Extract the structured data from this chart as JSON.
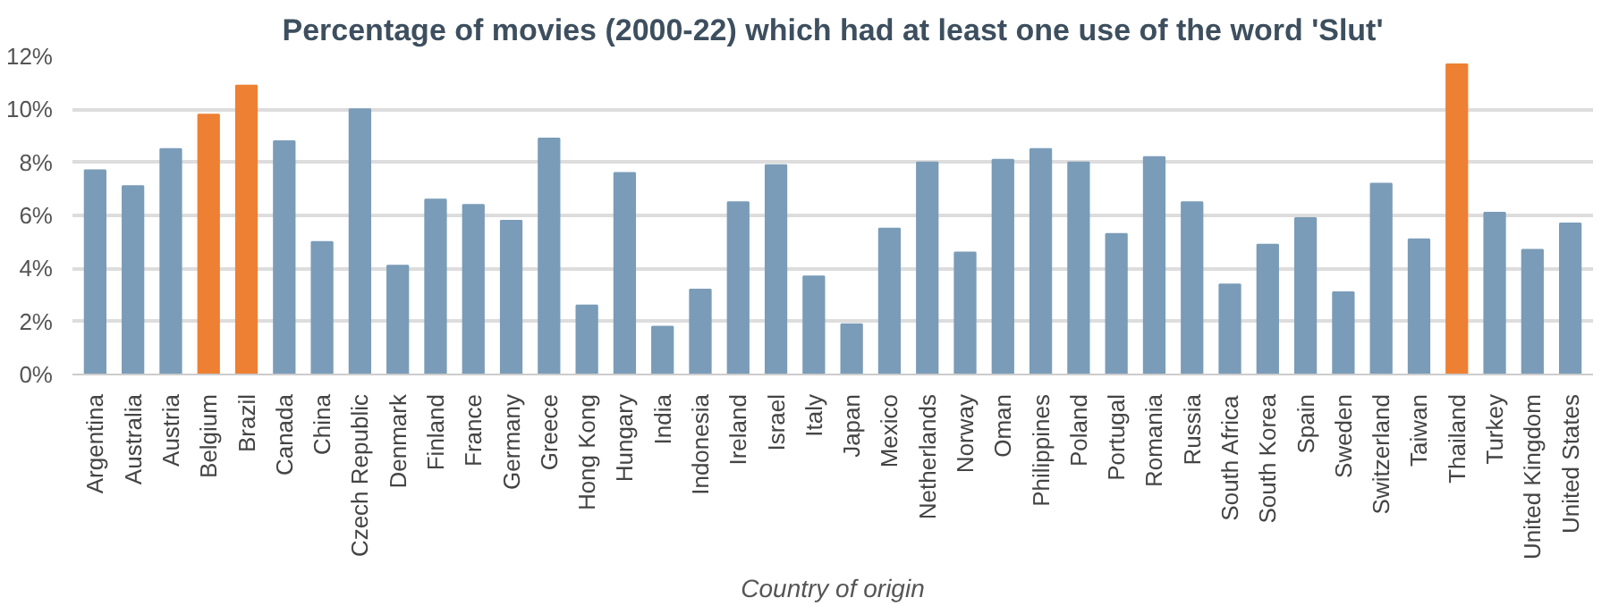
{
  "chart_data": {
    "type": "bar",
    "title": "Percentage of movies (2000-22) which had at least one use of the word 'Slut'",
    "xlabel": "Country of origin",
    "categories": [
      "Argentina",
      "Australia",
      "Austria",
      "Belgium",
      "Brazil",
      "Canada",
      "China",
      "Czech Republic",
      "Denmark",
      "Finland",
      "France",
      "Germany",
      "Greece",
      "Hong Kong",
      "Hungary",
      "India",
      "Indonesia",
      "Ireland",
      "Israel",
      "Italy",
      "Japan",
      "Mexico",
      "Netherlands",
      "Norway",
      "Oman",
      "Philippines",
      "Poland",
      "Portugal",
      "Romania",
      "Russia",
      "South Africa",
      "South Korea",
      "Spain",
      "Sweden",
      "Switzerland",
      "Taiwan",
      "Thailand",
      "Turkey",
      "United Kingdom",
      "United States"
    ],
    "values": [
      7.7,
      7.1,
      8.5,
      9.8,
      10.9,
      8.8,
      5.0,
      10.0,
      4.1,
      6.6,
      6.4,
      5.8,
      8.9,
      2.6,
      7.6,
      1.8,
      3.2,
      6.5,
      7.9,
      3.7,
      1.9,
      5.5,
      8.0,
      4.6,
      8.1,
      8.5,
      8.0,
      5.3,
      8.2,
      6.5,
      3.4,
      4.9,
      5.9,
      3.1,
      7.2,
      5.1,
      11.7,
      6.1,
      4.7,
      5.7
    ],
    "colors": [
      "#7a9cb8",
      "#7a9cb8",
      "#7a9cb8",
      "#ee8033",
      "#ee8033",
      "#7a9cb8",
      "#7a9cb8",
      "#7a9cb8",
      "#7a9cb8",
      "#7a9cb8",
      "#7a9cb8",
      "#7a9cb8",
      "#7a9cb8",
      "#7a9cb8",
      "#7a9cb8",
      "#7a9cb8",
      "#7a9cb8",
      "#7a9cb8",
      "#7a9cb8",
      "#7a9cb8",
      "#7a9cb8",
      "#7a9cb8",
      "#7a9cb8",
      "#7a9cb8",
      "#7a9cb8",
      "#7a9cb8",
      "#7a9cb8",
      "#7a9cb8",
      "#7a9cb8",
      "#7a9cb8",
      "#7a9cb8",
      "#7a9cb8",
      "#7a9cb8",
      "#7a9cb8",
      "#7a9cb8",
      "#7a9cb8",
      "#ee8033",
      "#7a9cb8",
      "#7a9cb8",
      "#7a9cb8"
    ],
    "ylim": [
      0,
      12
    ],
    "yticks": [
      {
        "value": 0,
        "label": "0%"
      },
      {
        "value": 2,
        "label": "2%"
      },
      {
        "value": 4,
        "label": "4%"
      },
      {
        "value": 6,
        "label": "6%"
      },
      {
        "value": 8,
        "label": "8%"
      },
      {
        "value": 10,
        "label": "10%"
      },
      {
        "value": 12,
        "label": "12%"
      }
    ],
    "grid": "y"
  }
}
